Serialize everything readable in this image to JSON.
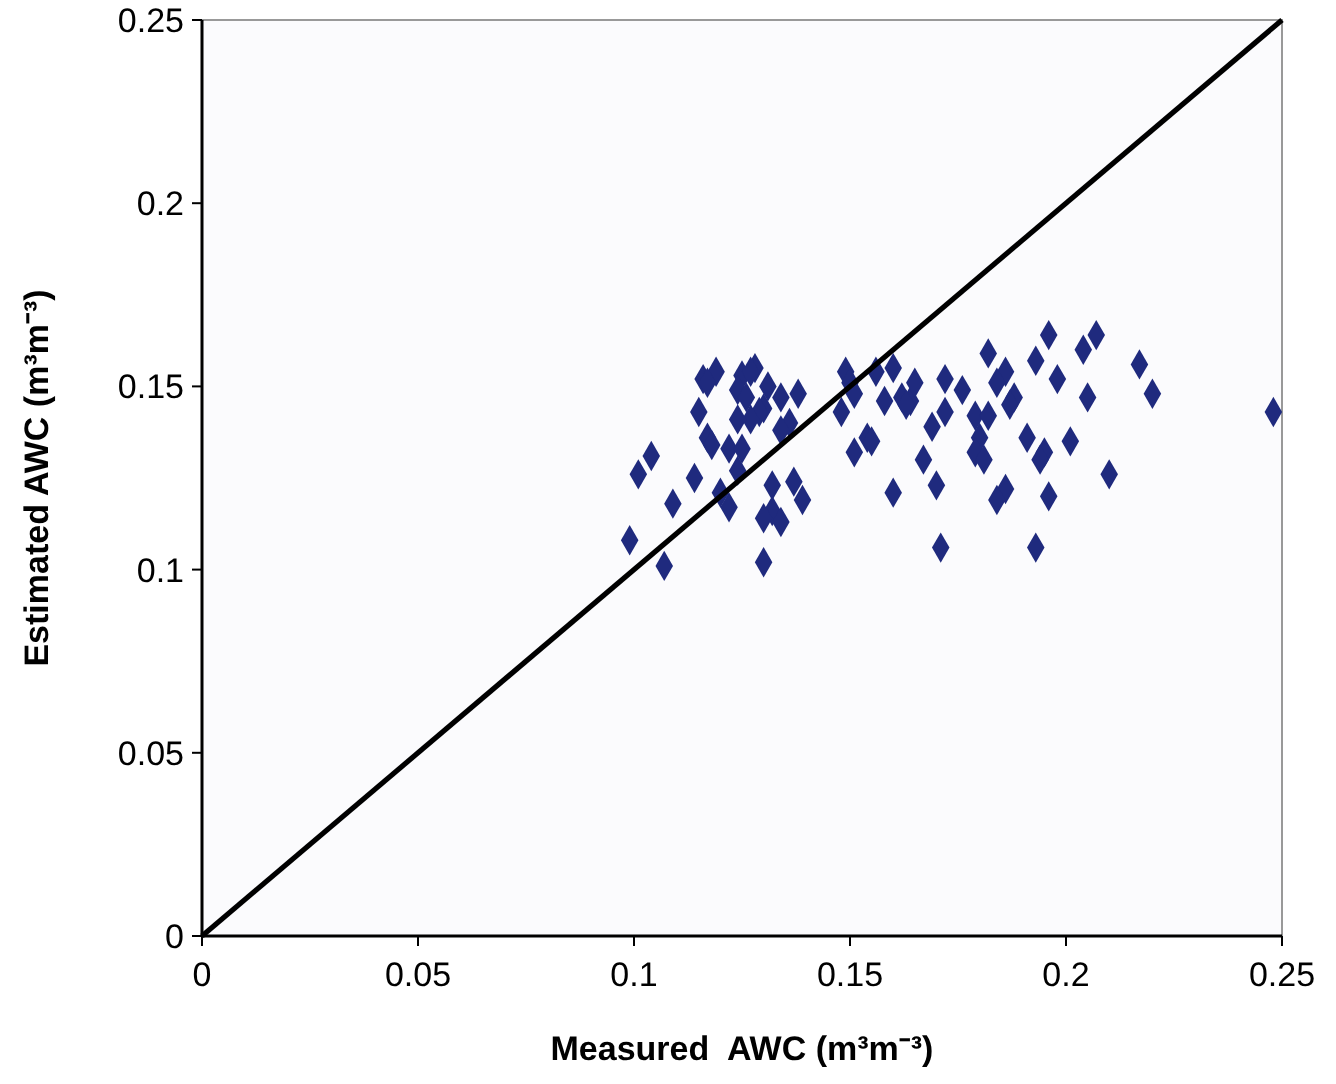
{
  "chart_data": {
    "type": "scatter",
    "xlabel": "Measured  AWC (m³m⁻³)",
    "ylabel": "Estimated AWC (m³m⁻³)",
    "xlim": [
      0,
      0.25
    ],
    "ylim": [
      0,
      0.25
    ],
    "xticks": [
      0,
      0.05,
      0.1,
      0.15,
      0.2,
      0.25
    ],
    "yticks": [
      0,
      0.05,
      0.1,
      0.15,
      0.2,
      0.25
    ],
    "grid": false,
    "series": [
      {
        "color": "#1f2a7e",
        "marker": "diamond",
        "x": [
          0.119,
          0.116,
          0.117,
          0.128,
          0.125,
          0.127,
          0.124,
          0.126,
          0.131,
          0.134,
          0.138,
          0.13,
          0.129,
          0.115,
          0.127,
          0.124,
          0.136,
          0.134,
          0.117,
          0.118,
          0.122,
          0.125,
          0.104,
          0.101,
          0.124,
          0.114,
          0.12,
          0.132,
          0.137,
          0.109,
          0.122,
          0.139,
          0.132,
          0.13,
          0.134,
          0.099,
          0.107,
          0.13,
          0.149,
          0.15,
          0.156,
          0.16,
          0.151,
          0.148,
          0.158,
          0.162,
          0.164,
          0.165,
          0.163,
          0.154,
          0.155,
          0.151,
          0.169,
          0.167,
          0.17,
          0.16,
          0.171,
          0.172,
          0.176,
          0.182,
          0.196,
          0.207,
          0.204,
          0.193,
          0.186,
          0.184,
          0.198,
          0.217,
          0.22,
          0.205,
          0.188,
          0.187,
          0.172,
          0.179,
          0.182,
          0.18,
          0.191,
          0.201,
          0.179,
          0.181,
          0.195,
          0.194,
          0.21,
          0.186,
          0.184,
          0.196,
          0.193,
          0.248
        ],
        "values": [
          0.154,
          0.152,
          0.151,
          0.155,
          0.153,
          0.154,
          0.149,
          0.147,
          0.15,
          0.147,
          0.148,
          0.144,
          0.143,
          0.143,
          0.141,
          0.141,
          0.14,
          0.138,
          0.136,
          0.134,
          0.133,
          0.133,
          0.131,
          0.126,
          0.127,
          0.125,
          0.121,
          0.123,
          0.124,
          0.118,
          0.117,
          0.119,
          0.116,
          0.114,
          0.113,
          0.108,
          0.101,
          0.102,
          0.154,
          0.151,
          0.154,
          0.155,
          0.148,
          0.143,
          0.146,
          0.147,
          0.146,
          0.151,
          0.145,
          0.136,
          0.135,
          0.132,
          0.139,
          0.13,
          0.123,
          0.121,
          0.106,
          0.152,
          0.149,
          0.159,
          0.164,
          0.164,
          0.16,
          0.157,
          0.154,
          0.151,
          0.152,
          0.156,
          0.148,
          0.147,
          0.147,
          0.145,
          0.143,
          0.142,
          0.142,
          0.136,
          0.136,
          0.135,
          0.132,
          0.13,
          0.132,
          0.13,
          0.126,
          0.122,
          0.119,
          0.12,
          0.106,
          0.143
        ]
      },
      {
        "type": "line",
        "color": "#000000",
        "marker": "none",
        "line_style": "solid",
        "x": [
          0,
          0.25
        ],
        "values": [
          0,
          0.25
        ]
      }
    ]
  }
}
